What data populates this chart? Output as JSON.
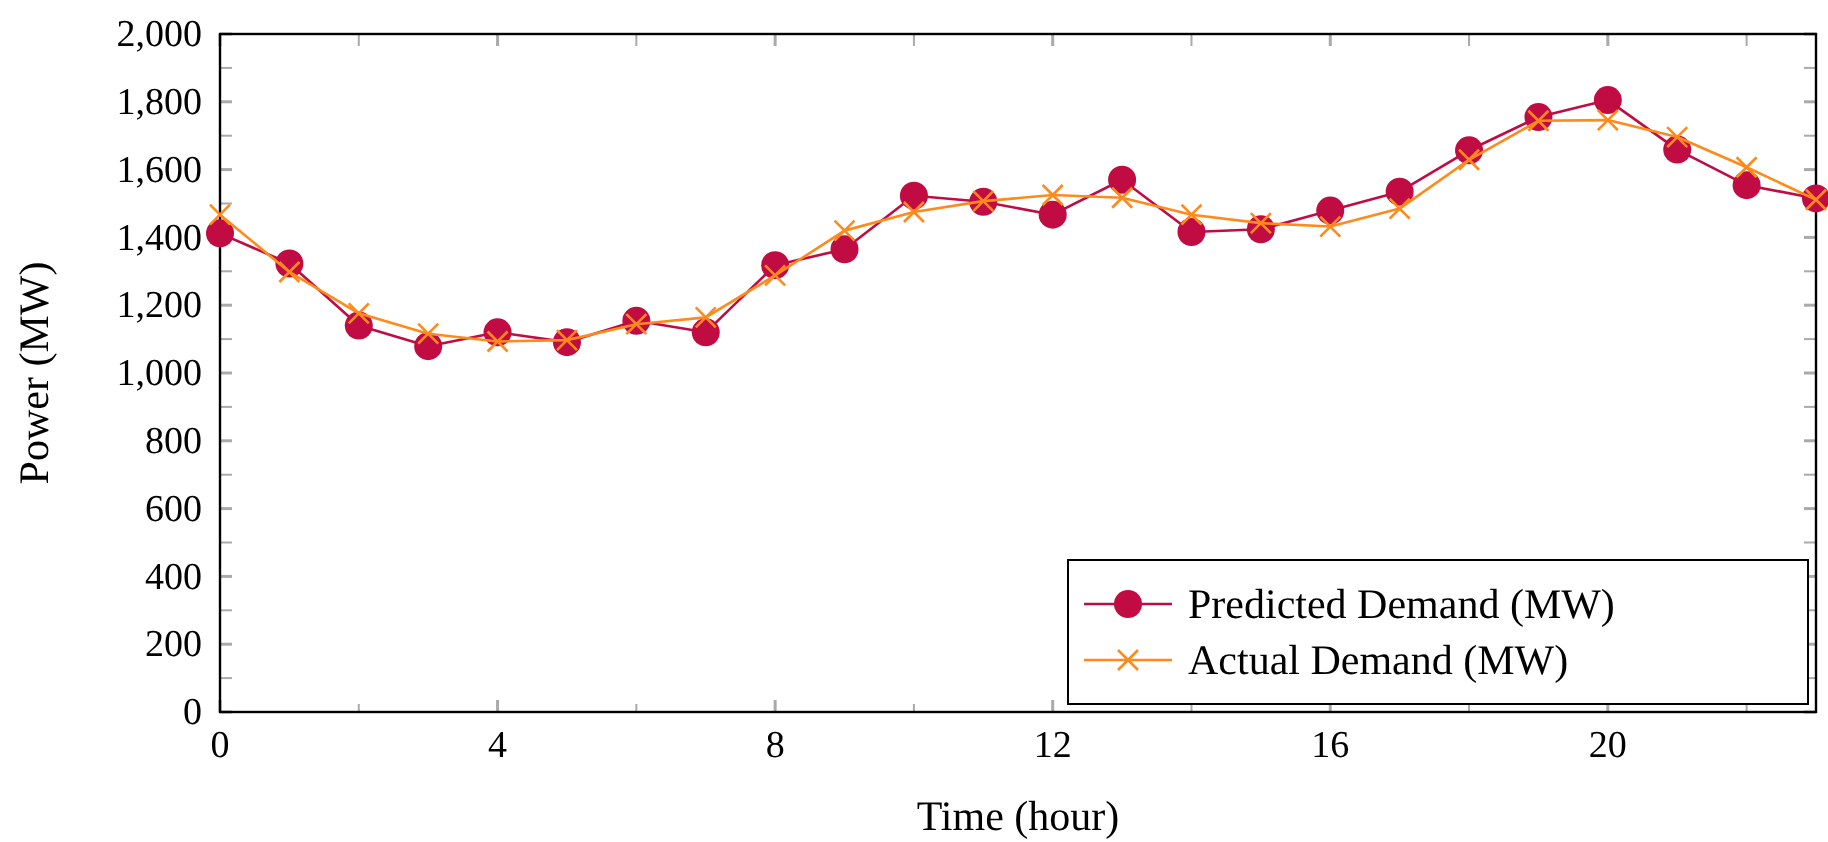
{
  "chart_data": {
    "type": "line",
    "xlabel": "Time (hour)",
    "ylabel": "Power (MW)",
    "x": [
      0,
      1,
      2,
      3,
      4,
      5,
      6,
      7,
      8,
      9,
      10,
      11,
      12,
      13,
      14,
      15,
      16,
      17,
      18,
      19,
      20,
      21,
      22,
      23
    ],
    "series": [
      {
        "name": "Predicted Demand (MW)",
        "color": "#c00c43",
        "marker": "circle",
        "values": [
          1412,
          1323,
          1140,
          1079,
          1120,
          1091,
          1154,
          1120,
          1318,
          1365,
          1523,
          1505,
          1467,
          1570,
          1416,
          1424,
          1479,
          1535,
          1657,
          1755,
          1805,
          1659,
          1554,
          1515
        ]
      },
      {
        "name": "Actual Demand (MW)",
        "color": "#ff8a1c",
        "marker": "cross",
        "values": [
          1467,
          1298,
          1176,
          1116,
          1093,
          1097,
          1144,
          1164,
          1288,
          1420,
          1475,
          1507,
          1525,
          1517,
          1467,
          1442,
          1432,
          1485,
          1629,
          1744,
          1746,
          1696,
          1607,
          1511
        ]
      }
    ],
    "xlim": [
      0,
      23
    ],
    "xticks": [
      0,
      {
        "value": 2,
        "label": null
      },
      4,
      {
        "value": 6,
        "label": null
      },
      8,
      {
        "value": 10,
        "label": null
      },
      12,
      {
        "value": 14,
        "label": null
      },
      16,
      {
        "value": 18,
        "label": null
      },
      20,
      {
        "value": 22,
        "label": null
      }
    ],
    "ylim": [
      0,
      2000
    ],
    "yticks": [
      {
        "value": 0,
        "label": "0"
      },
      {
        "value": 100,
        "label": null
      },
      {
        "value": 200,
        "label": "200"
      },
      {
        "value": 300,
        "label": null
      },
      {
        "value": 400,
        "label": "400"
      },
      {
        "value": 500,
        "label": null
      },
      {
        "value": 600,
        "label": "600"
      },
      {
        "value": 700,
        "label": null
      },
      {
        "value": 800,
        "label": "800"
      },
      {
        "value": 900,
        "label": null
      },
      {
        "value": 1000,
        "label": "1,000"
      },
      {
        "value": 1100,
        "label": null
      },
      {
        "value": 1200,
        "label": "1,200"
      },
      {
        "value": 1300,
        "label": null
      },
      {
        "value": 1400,
        "label": "1,400"
      },
      {
        "value": 1500,
        "label": null
      },
      {
        "value": 1600,
        "label": "1,600"
      },
      {
        "value": 1700,
        "label": null
      },
      {
        "value": 1800,
        "label": "1,800"
      },
      {
        "value": 1900,
        "label": null
      },
      {
        "value": 2000,
        "label": "2,000"
      }
    ],
    "legend": "bottom right"
  }
}
